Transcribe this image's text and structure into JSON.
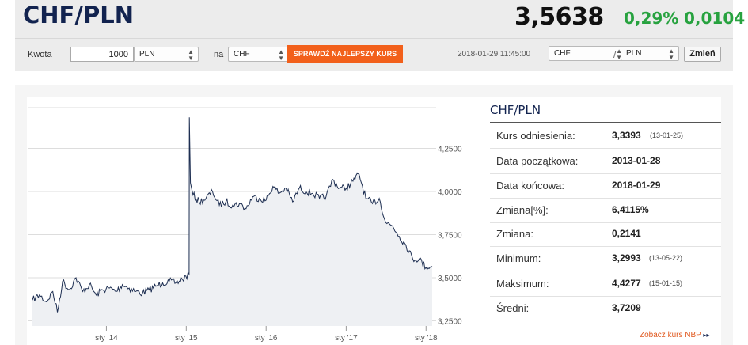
{
  "header": {
    "pair_title": "CHF/PLN",
    "price": "3,5638",
    "change_pct": "0,29%",
    "change_abs": "0,0104"
  },
  "toolbar": {
    "amount_label": "Kwota",
    "amount_value": "1000",
    "from_currency": "PLN",
    "na_label": "na",
    "to_currency": "CHF",
    "best_rate_label": "SPRAWDŹ NAJLEPSZY KURS",
    "timestamp": "2018-01-29 11:45:00",
    "pair_base": "CHF",
    "slash": "/",
    "pair_quote": "PLN",
    "change_label": "Zmień"
  },
  "info": {
    "title": "CHF/PLN",
    "rows": [
      {
        "label": "Kurs odniesienia:",
        "value": "3,3393",
        "date": "(13-01-25)"
      },
      {
        "label": "Data początkowa:",
        "value": "2013-01-28",
        "date": ""
      },
      {
        "label": "Data końcowa:",
        "value": "2018-01-29",
        "date": ""
      },
      {
        "label": "Zmiana[%]:",
        "value": "6,4115%",
        "date": ""
      },
      {
        "label": "Zmiana:",
        "value": "0,2141",
        "date": ""
      },
      {
        "label": "Minimum:",
        "value": "3,2993",
        "date": "(13-05-22)"
      },
      {
        "label": "Maksimum:",
        "value": "4,4277",
        "date": "(15-01-15)"
      },
      {
        "label": "Średni:",
        "value": "3,7209",
        "date": ""
      }
    ],
    "nbp_link": "Zobacz kurs NBP",
    "nbp_arrow": "▸▸"
  },
  "chart_data": {
    "type": "area",
    "title": "",
    "xlabel": "",
    "ylabel": "",
    "x_ticks": [
      "sty '14",
      "sty '15",
      "sty '16",
      "sty '17",
      "sty '18"
    ],
    "y_ticks": [
      "3,2500",
      "3,5000",
      "3,7500",
      "4,0000",
      "4,2500"
    ],
    "ylim": [
      3.25,
      4.5
    ],
    "xlim": [
      "2013-01-28",
      "2018-01-29"
    ],
    "grid": true,
    "colors": {
      "line": "#1e2f52",
      "fill": "#eef0f3"
    },
    "series": [
      {
        "x": [
          "2013-01-28",
          "2013-03-01",
          "2013-04-01",
          "2013-05-01",
          "2013-05-22",
          "2013-06-15",
          "2013-07-15",
          "2013-08-15",
          "2013-09-15",
          "2013-10-15",
          "2013-11-15",
          "2013-12-15",
          "2014-01-15",
          "2014-02-15",
          "2014-03-15",
          "2014-04-15",
          "2014-05-15",
          "2014-06-15",
          "2014-07-15",
          "2014-08-15",
          "2014-09-15",
          "2014-10-15",
          "2014-11-15",
          "2014-12-15",
          "2015-01-14",
          "2015-01-15",
          "2015-01-20",
          "2015-02-01",
          "2015-03-01",
          "2015-04-01",
          "2015-05-01",
          "2015-06-01",
          "2015-07-01",
          "2015-08-01",
          "2015-09-01",
          "2015-10-01",
          "2015-11-01",
          "2015-12-01",
          "2016-01-01",
          "2016-02-01",
          "2016-03-01",
          "2016-04-01",
          "2016-05-01",
          "2016-06-01",
          "2016-07-01",
          "2016-08-01",
          "2016-09-01",
          "2016-10-01",
          "2016-11-01",
          "2016-12-01",
          "2017-01-01",
          "2017-02-01",
          "2017-03-01",
          "2017-04-01",
          "2017-05-01",
          "2017-06-01",
          "2017-07-01",
          "2017-08-01",
          "2017-09-01",
          "2017-10-01",
          "2017-11-01",
          "2017-12-01",
          "2018-01-01",
          "2018-01-29"
        ],
        "values": [
          3.37,
          3.4,
          3.36,
          3.42,
          3.3,
          3.48,
          3.43,
          3.5,
          3.42,
          3.46,
          3.4,
          3.43,
          3.44,
          3.42,
          3.46,
          3.44,
          3.42,
          3.41,
          3.43,
          3.45,
          3.47,
          3.48,
          3.47,
          3.49,
          3.52,
          4.43,
          4.05,
          3.98,
          3.94,
          3.96,
          4.0,
          3.92,
          3.94,
          3.92,
          3.93,
          3.9,
          3.97,
          3.96,
          3.95,
          4.03,
          3.99,
          4.02,
          3.94,
          4.02,
          4.0,
          3.99,
          3.96,
          3.97,
          4.07,
          4.02,
          4.02,
          4.06,
          4.1,
          3.96,
          3.93,
          3.96,
          3.82,
          3.8,
          3.74,
          3.69,
          3.61,
          3.61,
          3.56,
          3.5638
        ]
      }
    ]
  }
}
